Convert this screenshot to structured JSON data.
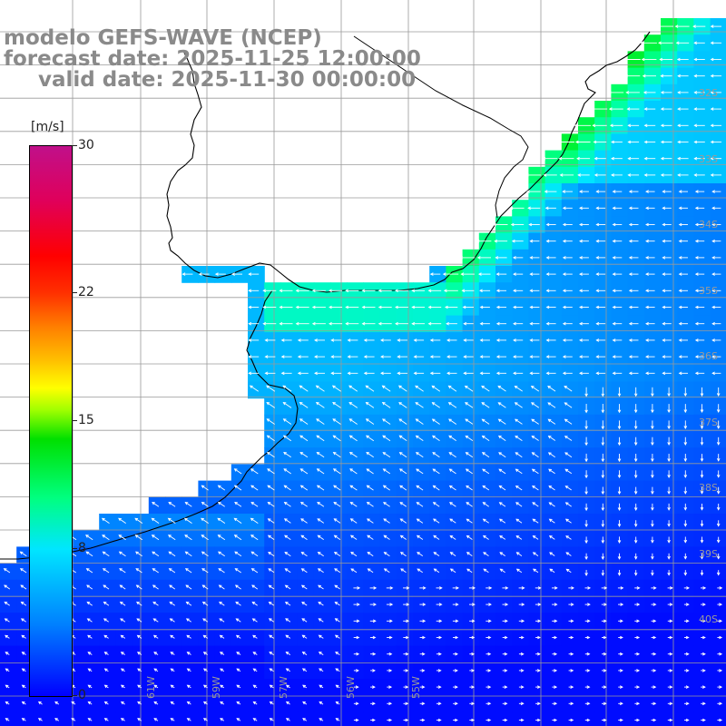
{
  "title": {
    "line1": "modelo GEFS-WAVE (NCEP)",
    "line2": "forecast date: 2025-11-25 12:00:00",
    "line3": "valid date: 2025-11-30 00:00:00"
  },
  "colorbar": {
    "unit": "[m/s]",
    "min": 0,
    "max": 30,
    "ticks": [
      "30",
      "22",
      "15",
      "8",
      "0"
    ],
    "tick_values": [
      30,
      22,
      15,
      8,
      0
    ],
    "colors": [
      "#0000ff",
      "#0080ff",
      "#00e6ff",
      "#00ff80",
      "#00e000",
      "#ffff00",
      "#ff8000",
      "#ff0000",
      "#c0108a"
    ]
  },
  "grid": {
    "lat_labels": [
      "32S",
      "33S",
      "34S",
      "35S",
      "36S",
      "37S",
      "38S",
      "39S",
      "40S"
    ],
    "lon_labels": [
      "61W",
      "59W",
      "57W",
      "56W",
      "55W"
    ]
  },
  "map": {
    "background": "#ffffff",
    "coastline_color": "#000000",
    "vector_color": "#ffffff"
  }
}
